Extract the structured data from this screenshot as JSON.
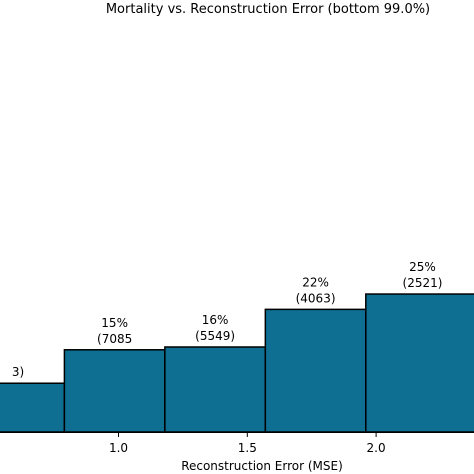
{
  "chart_data": {
    "type": "bar",
    "title": "Mortality vs. Reconstruction Error (bottom 99.0%)",
    "xlabel": "Reconstruction Error (MSE)",
    "ylabel": "",
    "x_ticks": [
      "1.0",
      "1.5",
      "2.0"
    ],
    "x_tick_values": [
      1.0,
      1.5,
      2.0
    ],
    "xlim": [
      0.54,
      2.38
    ],
    "ylim": [
      0,
      31
    ],
    "color": "#0e6f93",
    "bins": [
      {
        "x0": 0.43,
        "x1": 0.79,
        "value": 3.5,
        "pct": "",
        "count": "3)"
      },
      {
        "x0": 0.79,
        "x1": 1.18,
        "value": 5.9,
        "pct": "15%",
        "count": "(7085"
      },
      {
        "x0": 1.18,
        "x1": 1.57,
        "value": 6.1,
        "pct": "16%",
        "count": "(5549)"
      },
      {
        "x0": 1.57,
        "x1": 1.96,
        "value": 8.8,
        "pct": "22%",
        "count": "(4063)"
      },
      {
        "x0": 1.96,
        "x1": 2.4,
        "value": 9.9,
        "pct": "25%",
        "count": "(2521)"
      }
    ]
  }
}
